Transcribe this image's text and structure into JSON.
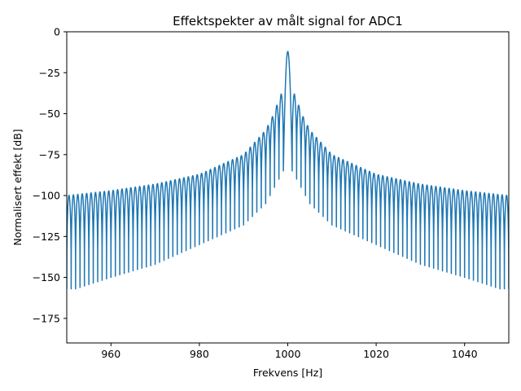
{
  "chart_data": {
    "type": "line",
    "title": "Effektspekter av målt signal for ADC1",
    "xlabel": "Frekvens [Hz]",
    "ylabel": "Normalisert effekt [dB]",
    "xlim": [
      950,
      1050
    ],
    "ylim": [
      -190,
      0
    ],
    "x_ticks": [
      960,
      980,
      1000,
      1020,
      1040
    ],
    "y_ticks": [
      0,
      -25,
      -50,
      -75,
      -100,
      -125,
      -150,
      -175
    ],
    "grid": false,
    "legend": "none",
    "series": [
      {
        "color": "#1f77b4",
        "peak_frequency": 1000,
        "peak_value": -12,
        "lobe_spacing": 1,
        "sidelobe_peaks": [
          {
            "offset": 1.5,
            "value": -38
          },
          {
            "offset": 2.5,
            "value": -45
          },
          {
            "offset": 3.5,
            "value": -52
          },
          {
            "offset": 5,
            "value": -60
          },
          {
            "offset": 10,
            "value": -75
          },
          {
            "offset": 20,
            "value": -87
          },
          {
            "offset": 30,
            "value": -93
          },
          {
            "offset": 40,
            "value": -97
          },
          {
            "offset": 50,
            "value": -100
          }
        ],
        "null_floor": [
          {
            "offset": 1,
            "value": -85
          },
          {
            "offset": 5,
            "value": -105
          },
          {
            "offset": 10,
            "value": -118
          },
          {
            "offset": 20,
            "value": -130
          },
          {
            "offset": 30,
            "value": -142
          },
          {
            "offset": 40,
            "value": -150
          },
          {
            "offset": 48,
            "value": -157
          }
        ]
      }
    ]
  }
}
